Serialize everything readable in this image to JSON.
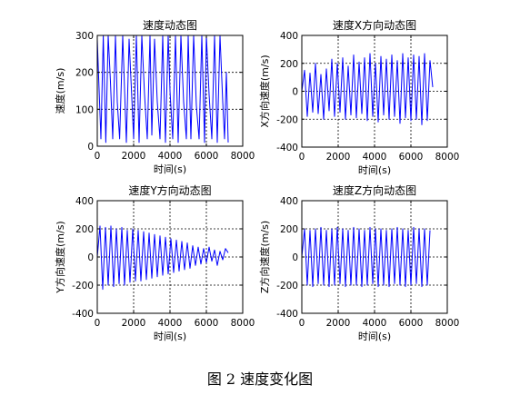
{
  "figure_caption": "图 2 速度变化图",
  "colors": {
    "series": "#0000ff",
    "axes": "#000000",
    "grid": "#000000",
    "background": "#ffffff"
  },
  "chart_data": [
    {
      "type": "line",
      "title": "速度动态图",
      "xlabel": "时间(s)",
      "ylabel": "速度(m/s)",
      "xlim": [
        0,
        8000
      ],
      "ylim": [
        0,
        300
      ],
      "xticks": [
        0,
        2000,
        4000,
        6000,
        8000
      ],
      "yticks": [
        0,
        100,
        200,
        300
      ],
      "grid": true,
      "series": [
        {
          "x": [
            0,
            80,
            200,
            330,
            470,
            600,
            720,
            850,
            1000,
            1100,
            1230,
            1400,
            1600,
            1750,
            1900,
            2000,
            2150,
            2300,
            2450,
            2600,
            2750,
            2900,
            3000,
            3150,
            3300,
            3450,
            3600,
            3750,
            3900,
            4000,
            4150,
            4300,
            4450,
            4600,
            4750,
            4900,
            5000,
            5150,
            5300,
            5450,
            5600,
            5750,
            5900,
            6000,
            6150,
            6300,
            6450,
            6600,
            6750,
            6900,
            7000,
            7100,
            7200
          ],
          "y": [
            290,
            180,
            20,
            300,
            10,
            300,
            180,
            20,
            300,
            120,
            20,
            300,
            10,
            290,
            130,
            20,
            300,
            10,
            300,
            140,
            20,
            300,
            30,
            290,
            120,
            20,
            300,
            10,
            300,
            150,
            20,
            300,
            10,
            300,
            120,
            20,
            300,
            20,
            300,
            110,
            20,
            300,
            10,
            300,
            140,
            20,
            300,
            10,
            300,
            120,
            20,
            200,
            10
          ]
        }
      ]
    },
    {
      "type": "line",
      "title": "速度X方向动态图",
      "xlabel": "时间(s)",
      "ylabel": "X方向速度(m/s)",
      "xlim": [
        0,
        8000
      ],
      "ylim": [
        -400,
        400
      ],
      "xticks": [
        0,
        2000,
        4000,
        6000,
        8000
      ],
      "yticks": [
        -400,
        -200,
        0,
        200,
        400
      ],
      "grid": true,
      "series": [
        {
          "x": [
            0,
            150,
            300,
            450,
            600,
            750,
            900,
            1050,
            1200,
            1350,
            1500,
            1650,
            1800,
            1950,
            2100,
            2250,
            2400,
            2550,
            2700,
            2850,
            3000,
            3150,
            3300,
            3450,
            3600,
            3750,
            3900,
            4050,
            4200,
            4350,
            4500,
            4650,
            4800,
            4950,
            5100,
            5250,
            5400,
            5550,
            5700,
            5850,
            6000,
            6150,
            6300,
            6450,
            6600,
            6750,
            6900,
            7050,
            7200
          ],
          "y": [
            0,
            150,
            -180,
            130,
            -150,
            200,
            -160,
            120,
            -200,
            160,
            -140,
            230,
            -180,
            200,
            -150,
            240,
            -200,
            180,
            -170,
            260,
            -190,
            210,
            -160,
            240,
            -210,
            270,
            -180,
            200,
            -220,
            250,
            -170,
            230,
            -200,
            260,
            -180,
            220,
            -230,
            270,
            -190,
            240,
            -210,
            260,
            -200,
            250,
            -240,
            270,
            -210,
            220,
            30
          ]
        }
      ]
    },
    {
      "type": "line",
      "title": "速度Y方向动态图",
      "xlabel": "时间(s)",
      "ylabel": "Y方向速度(m/s)",
      "xlim": [
        0,
        8000
      ],
      "ylim": [
        -400,
        400
      ],
      "xticks": [
        0,
        2000,
        4000,
        6000,
        8000
      ],
      "yticks": [
        -400,
        -200,
        0,
        200,
        400
      ],
      "grid": true,
      "series": [
        {
          "x": [
            0,
            150,
            300,
            450,
            600,
            750,
            900,
            1050,
            1200,
            1350,
            1500,
            1650,
            1800,
            1950,
            2100,
            2250,
            2400,
            2550,
            2700,
            2850,
            3000,
            3150,
            3300,
            3450,
            3600,
            3750,
            3900,
            4050,
            4200,
            4350,
            4500,
            4650,
            4800,
            4950,
            5100,
            5250,
            5400,
            5550,
            5700,
            5850,
            6000,
            6150,
            6300,
            6450,
            6600,
            6750,
            6900,
            7050,
            7200
          ],
          "y": [
            0,
            220,
            -230,
            210,
            -200,
            220,
            -210,
            200,
            -190,
            210,
            -200,
            190,
            -180,
            200,
            -170,
            190,
            -170,
            180,
            -160,
            170,
            -150,
            160,
            -140,
            150,
            -130,
            140,
            -120,
            130,
            -110,
            120,
            -100,
            110,
            -90,
            100,
            -80,
            80,
            -60,
            70,
            -50,
            60,
            -40,
            70,
            -30,
            50,
            -60,
            40,
            -20,
            60,
            30
          ]
        }
      ]
    },
    {
      "type": "line",
      "title": "速度Z方向动态图",
      "xlabel": "时间(s)",
      "ylabel": "Z方向速度(m/s)",
      "xlim": [
        0,
        8000
      ],
      "ylim": [
        -400,
        400
      ],
      "xticks": [
        0,
        2000,
        4000,
        6000,
        8000
      ],
      "yticks": [
        -400,
        -200,
        0,
        200,
        400
      ],
      "grid": true,
      "series": [
        {
          "x": [
            0,
            150,
            300,
            450,
            600,
            750,
            900,
            1050,
            1200,
            1350,
            1500,
            1650,
            1800,
            1950,
            2100,
            2250,
            2400,
            2550,
            2700,
            2850,
            3000,
            3150,
            3300,
            3450,
            3600,
            3750,
            3900,
            4050,
            4200,
            4350,
            4500,
            4650,
            4800,
            4950,
            5100,
            5250,
            5400,
            5550,
            5700,
            5850,
            6000,
            6150,
            6300,
            6450,
            6600,
            6750,
            6900,
            7050
          ],
          "y": [
            0,
            200,
            -200,
            190,
            -210,
            200,
            -190,
            210,
            -200,
            190,
            -210,
            200,
            -200,
            210,
            -190,
            200,
            -210,
            190,
            -200,
            210,
            -200,
            200,
            -210,
            190,
            -200,
            210,
            -190,
            200,
            -210,
            200,
            -200,
            190,
            -210,
            200,
            -190,
            210,
            -200,
            200,
            -210,
            190,
            -200,
            210,
            -190,
            200,
            -210,
            200,
            -200,
            190
          ]
        }
      ]
    }
  ]
}
